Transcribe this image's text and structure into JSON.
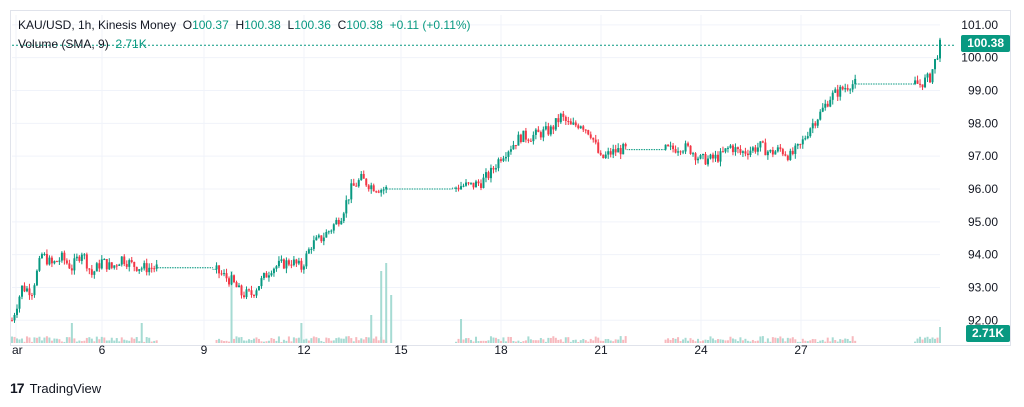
{
  "legend": {
    "symbol": "KAU/USD, 1h, Kinesis Money",
    "open_label": "O",
    "open_value": "100.37",
    "high_label": "H",
    "high_value": "100.38",
    "low_label": "L",
    "low_value": "100.36",
    "close_label": "C",
    "close_value": "100.38",
    "change": "+0.11 (+0.11%)",
    "volume_label": "Volume (SMA, 9)",
    "volume_value": "2.71K"
  },
  "price_tag": "100.38",
  "volume_tag": "2.71K",
  "footer": {
    "logo_mark": "17",
    "brand": "TradingView"
  },
  "colors": {
    "up": "#089981",
    "down": "#f23645",
    "up_vol": "#a6dbd3",
    "down_vol": "#f7b9be",
    "grid": "#f0f3fa"
  },
  "chart_data": {
    "type": "candlestick",
    "title": "KAU/USD, 1h, Kinesis Money",
    "y_axis": {
      "ticks": [
        "101.00",
        "100.00",
        "99.00",
        "98.00",
        "97.00",
        "96.00",
        "95.00",
        "94.00",
        "93.00",
        "92.00"
      ],
      "range": [
        91.4,
        101.3
      ]
    },
    "x_axis": {
      "ticks": [
        "ar",
        "6",
        "9",
        "12",
        "15",
        "18",
        "21",
        "24",
        "27"
      ]
    },
    "last_price": 100.38,
    "series_path": [
      [
        0,
        92.0
      ],
      [
        2,
        93.0
      ],
      [
        4,
        92.9
      ],
      [
        6,
        94.0
      ],
      [
        8,
        93.7
      ],
      [
        10,
        93.9
      ],
      [
        12,
        93.6
      ],
      [
        14,
        94.1
      ],
      [
        16,
        93.4
      ],
      [
        18,
        93.8
      ],
      [
        20,
        93.6
      ],
      [
        22,
        93.9
      ],
      [
        24,
        93.7
      ],
      [
        26,
        93.6
      ],
      [
        28,
        93.6
      ],
      [
        30,
        93.6
      ],
      [
        32,
        93.6
      ],
      [
        34,
        93.6
      ],
      [
        36,
        93.6
      ],
      [
        38,
        93.6
      ],
      [
        40,
        93.6
      ],
      [
        42,
        93.4
      ],
      [
        44,
        93.2
      ],
      [
        46,
        92.8
      ],
      [
        48,
        92.8
      ],
      [
        50,
        93.2
      ],
      [
        52,
        93.6
      ],
      [
        54,
        93.7
      ],
      [
        56,
        93.8
      ],
      [
        58,
        93.6
      ],
      [
        60,
        94.3
      ],
      [
        62,
        94.5
      ],
      [
        64,
        94.8
      ],
      [
        66,
        95.2
      ],
      [
        68,
        96.0
      ],
      [
        70,
        96.3
      ],
      [
        72,
        96.1
      ],
      [
        74,
        96.0
      ],
      [
        76,
        96.0
      ],
      [
        78,
        96.0
      ],
      [
        80,
        96.0
      ],
      [
        82,
        96.0
      ],
      [
        84,
        96.0
      ],
      [
        86,
        96.0
      ],
      [
        88,
        96.0
      ],
      [
        90,
        96.1
      ],
      [
        92,
        96.1
      ],
      [
        94,
        96.2
      ],
      [
        96,
        96.5
      ],
      [
        98,
        97.0
      ],
      [
        100,
        97.3
      ],
      [
        102,
        97.6
      ],
      [
        104,
        97.6
      ],
      [
        106,
        97.7
      ],
      [
        108,
        97.8
      ],
      [
        110,
        98.2
      ],
      [
        112,
        97.9
      ],
      [
        114,
        98.0
      ],
      [
        116,
        97.7
      ],
      [
        118,
        96.9
      ],
      [
        120,
        97.1
      ],
      [
        122,
        97.2
      ],
      [
        124,
        97.2
      ],
      [
        126,
        97.2
      ],
      [
        128,
        97.2
      ],
      [
        130,
        97.2
      ],
      [
        132,
        97.2
      ],
      [
        134,
        97.3
      ],
      [
        136,
        97.2
      ],
      [
        138,
        96.9
      ],
      [
        140,
        96.9
      ],
      [
        142,
        97.0
      ],
      [
        144,
        97.3
      ],
      [
        146,
        97.1
      ],
      [
        148,
        97.2
      ],
      [
        150,
        97.3
      ],
      [
        152,
        97.1
      ],
      [
        154,
        97.2
      ],
      [
        156,
        97.0
      ],
      [
        158,
        97.3
      ],
      [
        160,
        97.9
      ],
      [
        162,
        98.3
      ],
      [
        164,
        98.8
      ],
      [
        166,
        99.0
      ],
      [
        168,
        99.2
      ],
      [
        170,
        99.2
      ],
      [
        172,
        99.2
      ],
      [
        174,
        99.2
      ],
      [
        176,
        99.2
      ],
      [
        178,
        99.2
      ],
      [
        180,
        99.2
      ],
      [
        182,
        99.2
      ],
      [
        184,
        99.4
      ],
      [
        186,
        100.38
      ]
    ],
    "volume_spikes": [
      {
        "x": 12,
        "v": 0.25
      },
      {
        "x": 26,
        "v": 0.25
      },
      {
        "x": 44,
        "v": 0.9
      },
      {
        "x": 58,
        "v": 0.25
      },
      {
        "x": 72,
        "v": 0.35
      },
      {
        "x": 74,
        "v": 0.9
      },
      {
        "x": 75,
        "v": 1.0
      },
      {
        "x": 76,
        "v": 0.6
      },
      {
        "x": 90,
        "v": 0.3
      },
      {
        "x": 186,
        "v": 0.2
      }
    ]
  }
}
